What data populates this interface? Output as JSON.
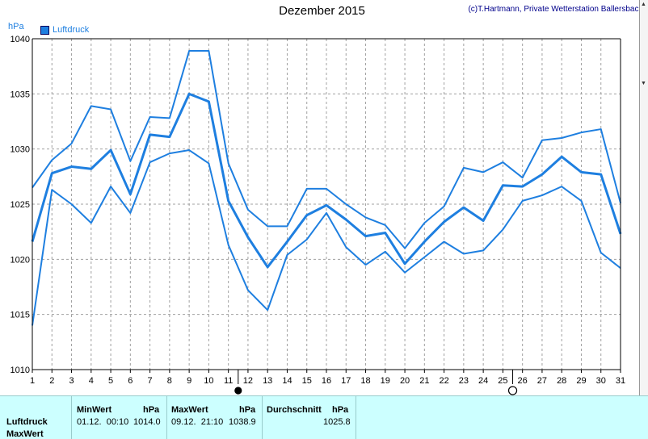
{
  "chart_data": {
    "type": "line",
    "title": "Dezember 2015",
    "credit": "(c)T.Hartmann, Private Wetterstation Ballersbach",
    "ylabel": "hPa",
    "legend": "Luftdruck",
    "legend_position": "top-left",
    "ylim": [
      1010,
      1040
    ],
    "yticks": [
      "1040",
      "1035",
      "1030",
      "1025",
      "1020",
      "1015",
      "1010"
    ],
    "x": [
      1,
      2,
      3,
      4,
      5,
      6,
      7,
      8,
      9,
      10,
      11,
      12,
      13,
      14,
      15,
      16,
      17,
      18,
      19,
      20,
      21,
      22,
      23,
      24,
      25,
      26,
      27,
      28,
      29,
      30,
      31
    ],
    "grid": true,
    "moon_phases": [
      {
        "type": "new-moon",
        "day": 11.5
      },
      {
        "type": "full-moon",
        "day": 25.5
      }
    ],
    "series": [
      {
        "values": [
          1026.5,
          1029.0,
          1030.5,
          1033.9,
          1033.6,
          1028.9,
          1032.9,
          1032.8,
          1038.9,
          1038.9,
          1028.7,
          1024.5,
          1023.0,
          1023.0,
          1026.4,
          1026.4,
          1025.0,
          1023.8,
          1023.1,
          1021.0,
          1023.3,
          1024.8,
          1028.3,
          1027.9,
          1028.8,
          1027.4,
          1030.8,
          1031.0,
          1031.5,
          1031.8,
          1025.1
        ]
      },
      {
        "values": [
          1021.6,
          1027.8,
          1028.4,
          1028.2,
          1029.9,
          1025.9,
          1031.3,
          1031.1,
          1035.0,
          1034.3,
          1025.3,
          1022.0,
          1019.3,
          1021.6,
          1024.0,
          1024.9,
          1023.6,
          1022.1,
          1022.4,
          1019.6,
          1021.6,
          1023.4,
          1024.7,
          1023.5,
          1026.7,
          1026.6,
          1027.7,
          1029.3,
          1027.9,
          1027.7,
          1022.3
        ]
      },
      {
        "values": [
          1014.0,
          1026.3,
          1025.0,
          1023.3,
          1026.6,
          1024.2,
          1028.8,
          1029.6,
          1029.9,
          1028.7,
          1021.3,
          1017.2,
          1015.4,
          1020.4,
          1021.8,
          1024.2,
          1021.1,
          1019.5,
          1020.7,
          1018.8,
          1020.2,
          1021.6,
          1020.5,
          1020.8,
          1022.7,
          1025.3,
          1025.8,
          1026.6,
          1025.3,
          1020.6,
          1019.2
        ]
      }
    ]
  },
  "table": {
    "row1_label": "Luftdruck",
    "row2_label": "MaxWert",
    "min_header": "MinWert",
    "min_unit": "hPa",
    "min_datetime": "01.12.  00:10",
    "min_value": "1014.0",
    "max_header": "MaxWert",
    "max_unit": "hPa",
    "max_datetime": "09.12.  21:10",
    "max_value": "1038.9",
    "avg_header": "Durchschnitt",
    "avg_unit": "hPa",
    "avg_value": "1025.8"
  },
  "colors": {
    "line": "#1e7fe0",
    "grid": "#a0a0a0",
    "table_bg": "#ccffff"
  }
}
